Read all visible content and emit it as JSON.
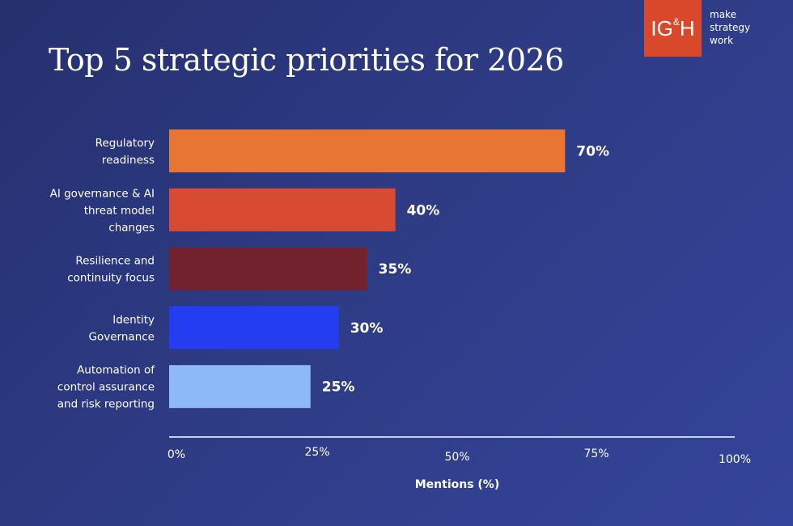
{
  "title": "Top 5 strategic priorities for 2026",
  "logo": {
    "text_left": "IG",
    "text_amp": "&",
    "text_right": "H",
    "color": "#d9482b",
    "tagline_lines": [
      "make",
      "strategy",
      "work"
    ]
  },
  "chart_data": {
    "type": "bar",
    "orientation": "horizontal",
    "title": "Top 5 strategic priorities for 2026",
    "categories": [
      [
        "Regulatory",
        "readiness"
      ],
      [
        "AI governance & AI",
        "threat model",
        "changes"
      ],
      [
        "Resilience and",
        "continuity focus"
      ],
      [
        "Identity",
        "Governance"
      ],
      [
        "Automation of",
        "control assurance",
        "and risk reporting"
      ]
    ],
    "values": [
      70,
      40,
      35,
      30,
      25
    ],
    "value_labels": [
      "70%",
      "40%",
      "35%",
      "30%",
      "25%"
    ],
    "colors": [
      "#e87532",
      "#d84a31",
      "#72222d",
      "#243df0",
      "#8eb9f8"
    ],
    "xlim": [
      0,
      100
    ],
    "xticks": [
      0,
      25,
      50,
      75,
      100
    ],
    "xtick_labels": [
      "0%",
      "25%",
      "50%",
      "75%",
      "100%"
    ],
    "xlabel": "Mentions (%)",
    "ylabel": "",
    "grid": false,
    "legend": "none"
  }
}
